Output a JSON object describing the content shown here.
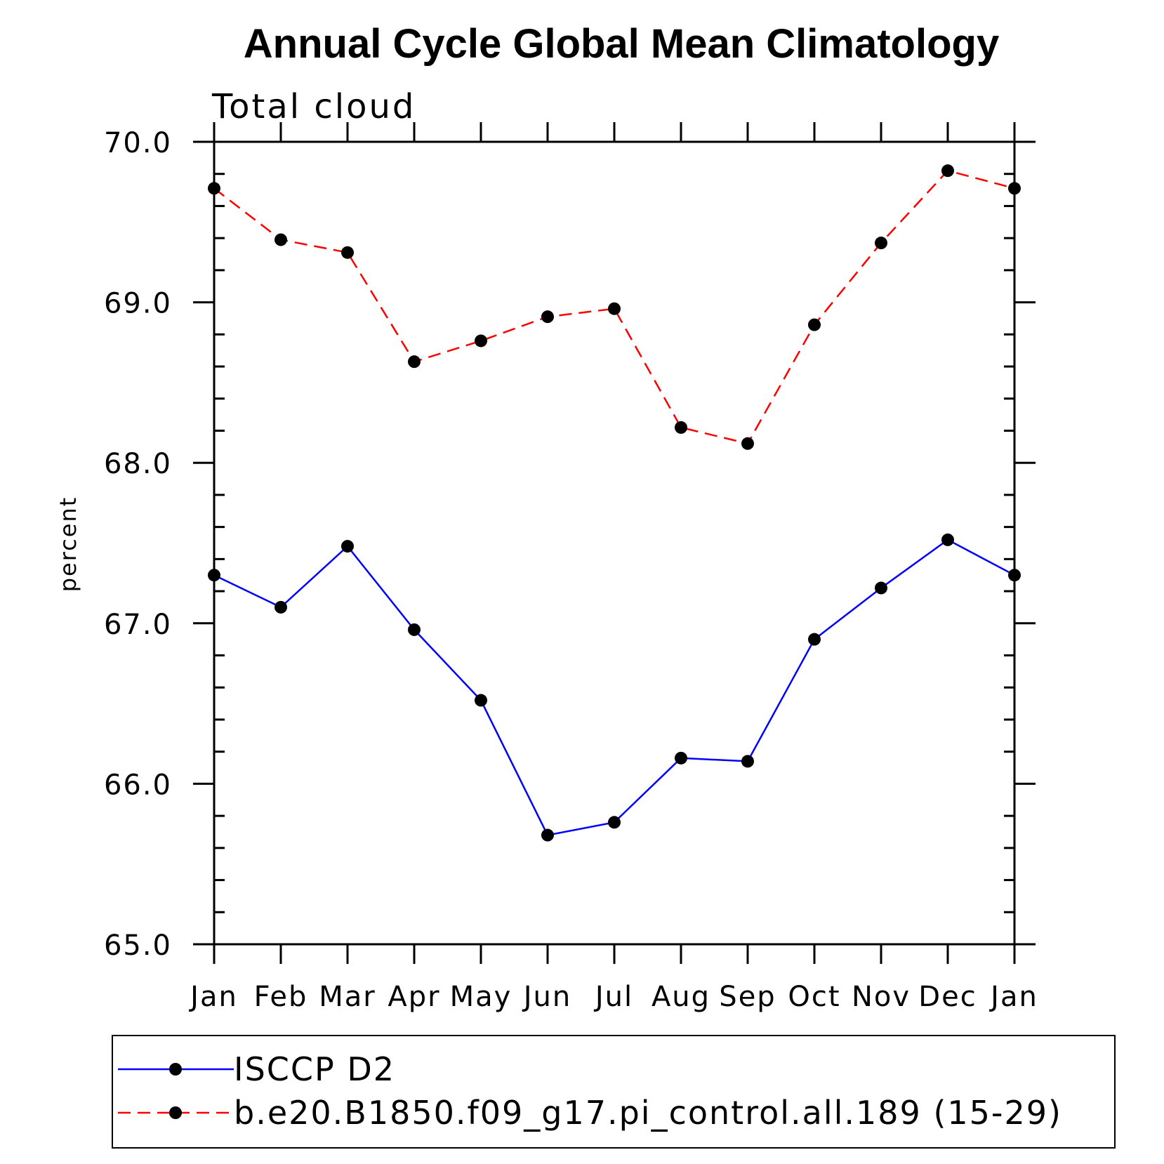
{
  "chart_data": {
    "type": "line",
    "title": "Annual Cycle Global Mean Climatology",
    "subtitle": "Total cloud",
    "xlabel": "",
    "ylabel": "percent",
    "ylim": [
      65.0,
      70.0
    ],
    "yticks": [
      "65.0",
      "66.0",
      "67.0",
      "68.0",
      "69.0",
      "70.0"
    ],
    "categories": [
      "Jan",
      "Feb",
      "Mar",
      "Apr",
      "May",
      "Jun",
      "Jul",
      "Aug",
      "Sep",
      "Oct",
      "Nov",
      "Dec",
      "Jan"
    ],
    "series": [
      {
        "name": "ISCCP D2",
        "color": "#0000ff",
        "line_style": "solid",
        "marker": "filled-circle",
        "values": [
          67.3,
          67.1,
          67.48,
          66.96,
          66.52,
          65.68,
          65.76,
          66.16,
          66.14,
          66.9,
          67.22,
          67.52,
          67.3
        ]
      },
      {
        "name": "b.e20.B1850.f09_g17.pi_control.all.189 (15-29)",
        "color": "#ff0000",
        "line_style": "dashed",
        "marker": "filled-circle",
        "values": [
          69.71,
          69.39,
          69.31,
          68.63,
          68.76,
          68.91,
          68.96,
          68.22,
          68.12,
          68.86,
          69.37,
          69.82,
          69.71
        ]
      }
    ],
    "grid": false,
    "legend_position": "bottom"
  }
}
